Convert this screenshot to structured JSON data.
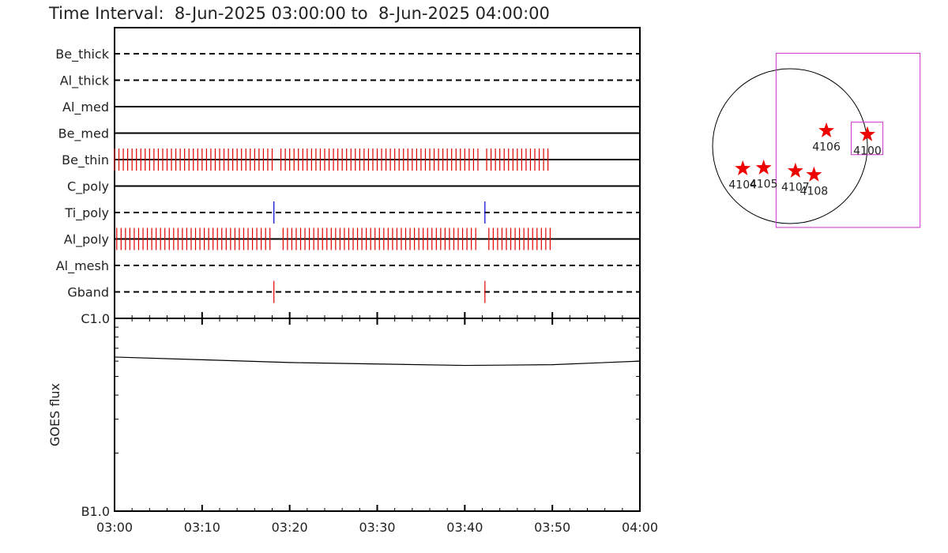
{
  "chart_data": [
    {
      "type": "timeline",
      "title": "Time Interval:  8-Jun-2025 03:00:00 to  8-Jun-2025 04:00:00",
      "xlim": [
        0,
        60
      ],
      "rows": [
        {
          "name": "Be_thick",
          "style": "dashed",
          "times": []
        },
        {
          "name": "Al_thick",
          "style": "dashed",
          "times": []
        },
        {
          "name": "Al_med",
          "style": "solid",
          "times": []
        },
        {
          "name": "Be_med",
          "style": "solid",
          "times": []
        },
        {
          "name": "Be_thin",
          "style": "solid",
          "color": "#e00000",
          "times": [
            0,
            0.5,
            1,
            1.5,
            2,
            2.5,
            3,
            3.5,
            4,
            4.5,
            5,
            5.5,
            6,
            6.5,
            7,
            7.5,
            8,
            8.5,
            9,
            9.5,
            10,
            10.5,
            11,
            11.5,
            12,
            12.5,
            13,
            13.5,
            14,
            14.5,
            15,
            15.5,
            16,
            16.5,
            17,
            17.5,
            18,
            19,
            19.5,
            20,
            20.5,
            21,
            21.5,
            22,
            22.5,
            23,
            23.5,
            24,
            24.5,
            25,
            25.5,
            26,
            26.5,
            27,
            27.5,
            28,
            28.5,
            29,
            29.5,
            30,
            30.5,
            31,
            31.5,
            32,
            32.5,
            33,
            33.5,
            34,
            34.5,
            35,
            35.5,
            36,
            36.5,
            37,
            37.5,
            38,
            38.5,
            39,
            39.5,
            40,
            40.5,
            41,
            41.5,
            42.5,
            43,
            43.5,
            44,
            44.5,
            45,
            45.5,
            46,
            46.5,
            47,
            47.5,
            48,
            48.5,
            49,
            49.5
          ]
        },
        {
          "name": "C_poly",
          "style": "solid",
          "times": []
        },
        {
          "name": "Ti_poly",
          "style": "dashed",
          "color": "#0000cc",
          "times": [
            18.2,
            42.3
          ]
        },
        {
          "name": "Al_poly",
          "style": "solid",
          "color": "#e00000",
          "times": [
            0.25,
            0.75,
            1.25,
            1.75,
            2.25,
            2.75,
            3.25,
            3.75,
            4.25,
            4.75,
            5.25,
            5.75,
            6.25,
            6.75,
            7.25,
            7.75,
            8.25,
            8.75,
            9.25,
            9.75,
            10.25,
            10.75,
            11.25,
            11.75,
            12.25,
            12.75,
            13.25,
            13.75,
            14.25,
            14.75,
            15.25,
            15.75,
            16.25,
            16.75,
            17.25,
            17.75,
            19.25,
            19.75,
            20.25,
            20.75,
            21.25,
            21.75,
            22.25,
            22.75,
            23.25,
            23.75,
            24.25,
            24.75,
            25.25,
            25.75,
            26.25,
            26.75,
            27.25,
            27.75,
            28.25,
            28.75,
            29.25,
            29.75,
            30.25,
            30.75,
            31.25,
            31.75,
            32.25,
            32.75,
            33.25,
            33.75,
            34.25,
            34.75,
            35.25,
            35.75,
            36.25,
            36.75,
            37.25,
            37.75,
            38.25,
            38.75,
            39.25,
            39.75,
            40.25,
            40.75,
            41.25,
            42.75,
            43.25,
            43.75,
            44.25,
            44.75,
            45.25,
            45.75,
            46.25,
            46.75,
            47.25,
            47.75,
            48.25,
            48.75,
            49.25,
            49.75
          ]
        },
        {
          "name": "Al_mesh",
          "style": "dashed",
          "times": []
        },
        {
          "name": "Gband",
          "style": "dashed",
          "color": "#e00000",
          "times": [
            18.2,
            42.3
          ]
        }
      ]
    },
    {
      "type": "line",
      "y_label": "GOES flux",
      "log_y": true,
      "xlim": [
        0,
        60
      ],
      "xticks": [
        {
          "value": 0,
          "label": "03:00"
        },
        {
          "value": 10,
          "label": "03:10"
        },
        {
          "value": 20,
          "label": "03:20"
        },
        {
          "value": 30,
          "label": "03:30"
        },
        {
          "value": 40,
          "label": "03:40"
        },
        {
          "value": 50,
          "label": "03:50"
        },
        {
          "value": 60,
          "label": "04:00"
        }
      ],
      "xminor_ticks": [
        2,
        4,
        6,
        8,
        12,
        14,
        16,
        18,
        22,
        24,
        26,
        28,
        32,
        34,
        36,
        38,
        42,
        44,
        46,
        48,
        52,
        54,
        56,
        58
      ],
      "ylim": [
        1e-07,
        1e-06
      ],
      "yticks": [
        {
          "value": 1e-07,
          "label": "B1.0"
        },
        {
          "value": 1e-06,
          "label": "C1.0"
        }
      ],
      "yminor_ticks": [
        2e-07,
        3e-07,
        4e-07,
        5e-07,
        6e-07,
        7e-07,
        8e-07,
        9e-07
      ],
      "x": [
        0,
        10,
        20,
        30,
        40,
        50,
        60
      ],
      "values": [
        6.3e-07,
        6.1e-07,
        5.9e-07,
        5.8e-07,
        5.7e-07,
        5.75e-07,
        6e-07
      ],
      "color": "#000000"
    },
    {
      "type": "disk_map",
      "fov": {
        "x": [
          -0.18,
          1.68
        ],
        "y": [
          -1.05,
          1.2
        ],
        "color": "#cc33cc"
      },
      "box": {
        "x": [
          0.79,
          1.2
        ],
        "y": [
          -0.11,
          0.31
        ],
        "color": "#cc33cc"
      },
      "points": [
        {
          "label": "4106",
          "x": 0.47,
          "y": 0.2
        },
        {
          "label": "4100",
          "x": 1.0,
          "y": 0.15
        },
        {
          "label": "4104",
          "x": -0.61,
          "y": -0.29
        },
        {
          "label": "4105",
          "x": -0.34,
          "y": -0.28
        },
        {
          "label": "4107",
          "x": 0.07,
          "y": -0.32
        },
        {
          "label": "4108",
          "x": 0.31,
          "y": -0.37
        }
      ],
      "color": "#ee0000"
    }
  ]
}
